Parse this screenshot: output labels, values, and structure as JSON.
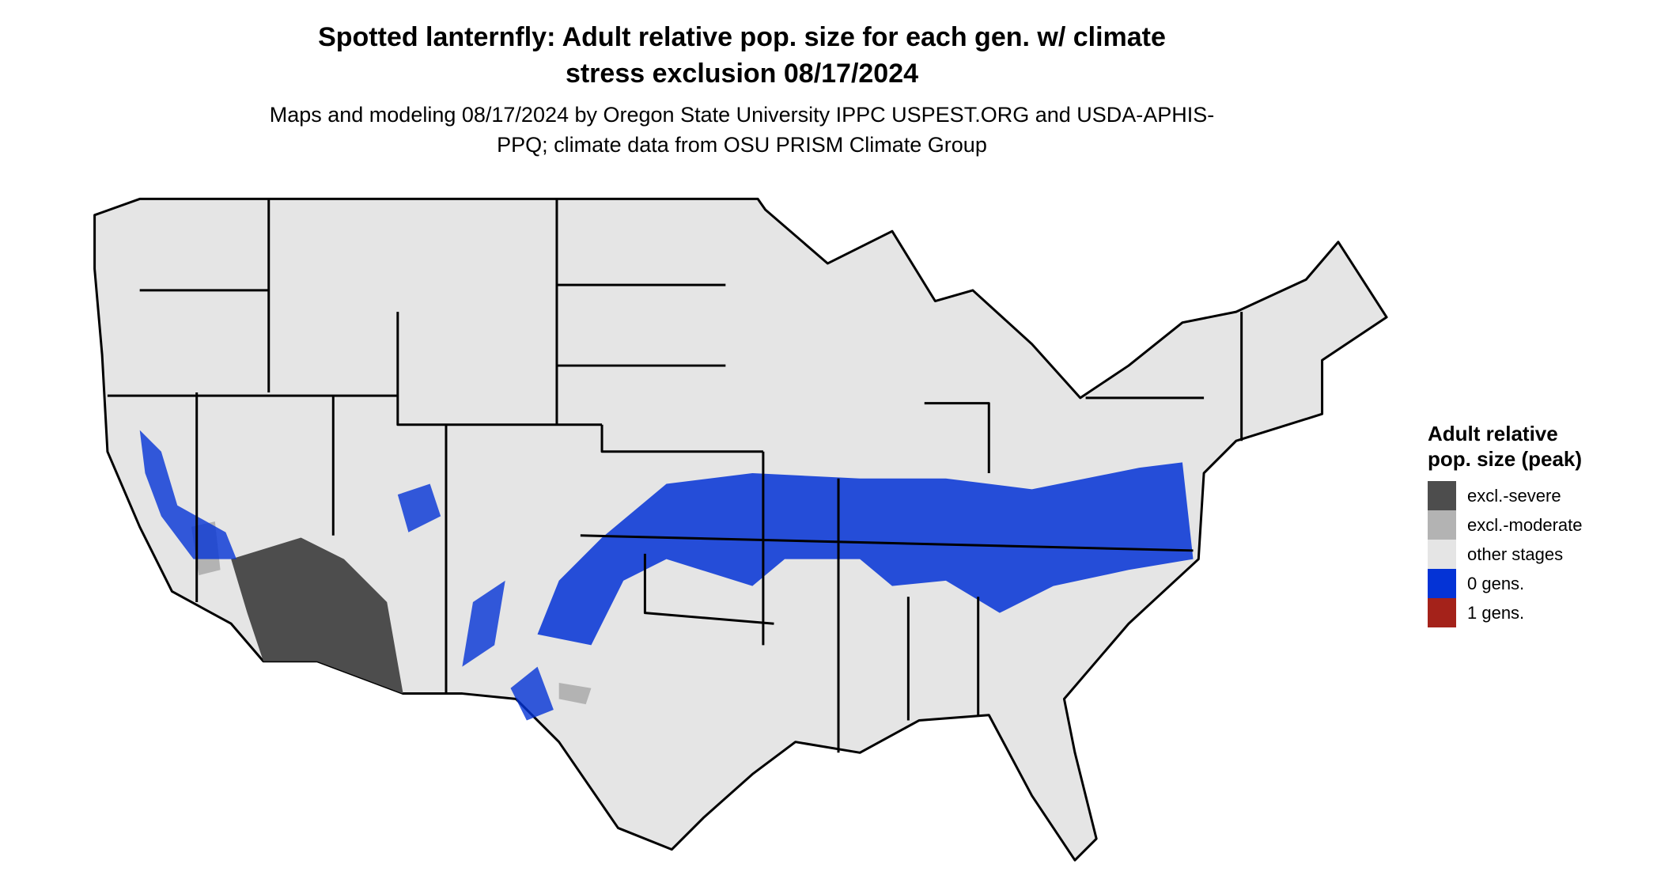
{
  "header": {
    "title": "Spotted lanternfly: Adult relative pop. size for each gen. w/ climate stress exclusion 08/17/2024",
    "subtitle": "Maps and modeling 08/17/2024 by Oregon State University IPPC USPEST.ORG and USDA-APHIS-PPQ; climate data from OSU PRISM Climate Group"
  },
  "legend": {
    "title": "Adult relative pop. size (peak)",
    "items": [
      {
        "label": "excl.-severe",
        "color": "#4d4d4d"
      },
      {
        "label": "excl.-moderate",
        "color": "#b3b3b3"
      },
      {
        "label": "other stages",
        "color": "#e5e5e5"
      },
      {
        "label": "0 gens.",
        "color": "#0433d6"
      },
      {
        "label": "1 gens.",
        "color": "#a4221a"
      }
    ]
  }
}
